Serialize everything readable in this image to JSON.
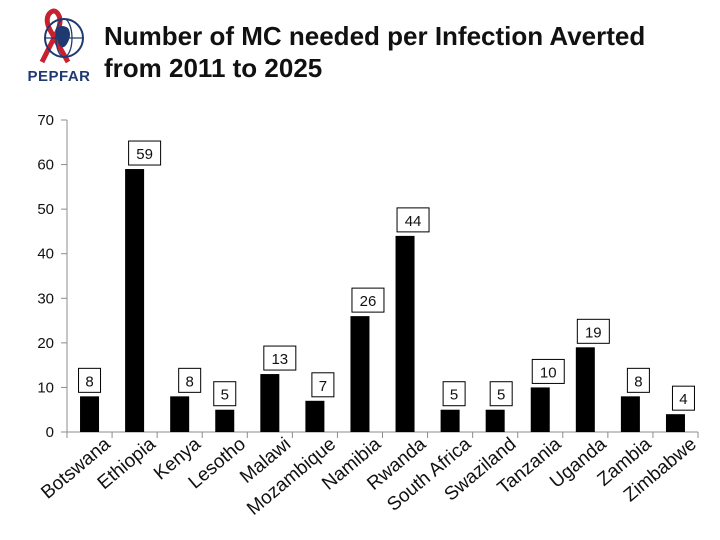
{
  "header": {
    "logo_text": "PEPFAR",
    "title_line1": "Number of MC needed per Infection Averted",
    "title_line2": "from 2011 to 2025"
  },
  "colors": {
    "bar": "#000000",
    "axis": "#8c8c8c",
    "text": "#111111",
    "label_border": "#000000",
    "logo_ribbon": "#c8202f",
    "logo_globe": "#1f3a70"
  },
  "chart_data": {
    "type": "bar",
    "title": "Number of MC needed per Infection Averted from 2011 to 2025",
    "xlabel": "",
    "ylabel": "",
    "ylim": [
      0,
      70
    ],
    "yticks": [
      0,
      10,
      20,
      30,
      40,
      50,
      60,
      70
    ],
    "grid": false,
    "categories": [
      "Botswana",
      "Ethiopia",
      "Kenya",
      "Lesotho",
      "Malawi",
      "Mozambique",
      "Namibia",
      "Rwanda",
      "South Africa",
      "Swaziland",
      "Tanzania",
      "Uganda",
      "Zambia",
      "Zimbabwe"
    ],
    "values": [
      8,
      59,
      8,
      5,
      13,
      7,
      26,
      44,
      5,
      5,
      10,
      19,
      8,
      4
    ],
    "data_labels": [
      "8",
      "59",
      "8",
      "5",
      "13",
      "7",
      "26",
      "44",
      "5",
      "5",
      "10",
      "19",
      "8",
      "4"
    ]
  }
}
